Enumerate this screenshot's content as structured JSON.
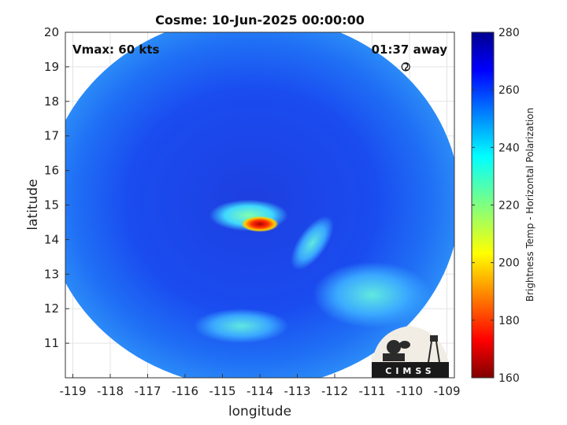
{
  "chart_data": {
    "type": "heatmap",
    "title": "Cosme: 10-Jun-2025 00:00:00",
    "xlabel": "longitude",
    "ylabel": "latitude",
    "xlim": [
      -119.2,
      -108.8
    ],
    "ylim": [
      10,
      20
    ],
    "xticks": [
      "-119",
      "-118",
      "-117",
      "-116",
      "-115",
      "-114",
      "-113",
      "-112",
      "-111",
      "-110",
      "-109"
    ],
    "yticks": [
      "11",
      "12",
      "13",
      "14",
      "15",
      "16",
      "17",
      "18",
      "19",
      "20"
    ],
    "xtick_values": [
      -119,
      -118,
      -117,
      -116,
      -115,
      -114,
      -113,
      -112,
      -111,
      -110,
      -109
    ],
    "ytick_values": [
      11,
      12,
      13,
      14,
      15,
      16,
      17,
      18,
      19,
      20
    ],
    "grid": true,
    "annotations": {
      "vmax": "Vmax: 60 kts",
      "time_away": "01:37 away"
    },
    "storm_center": {
      "lon": -110.1,
      "lat": 19.0
    },
    "colorbar": {
      "label": "Brightness Temp - Horizontal Polarization",
      "range": [
        160,
        280
      ],
      "ticks": [
        "160",
        "180",
        "200",
        "220",
        "240",
        "260",
        "280"
      ],
      "tick_values": [
        160,
        180,
        200,
        220,
        240,
        260,
        280
      ],
      "colormap": "jet"
    },
    "swath": {
      "center_lon": -114.2,
      "center_lat": 15.1,
      "radius_lon": 5.55,
      "radius_lat": 5.4,
      "background_tb": 268
    },
    "features": [
      {
        "name": "eyewall",
        "lon": -114.0,
        "lat": 14.45,
        "tb": 185
      },
      {
        "name": "inner-band",
        "lon": -114.3,
        "lat": 14.7,
        "tb": 225
      },
      {
        "name": "outer-rainband",
        "lon": -112.6,
        "lat": 13.9,
        "tb": 240
      },
      {
        "name": "southern-convection",
        "lon": -111.0,
        "lat": 12.4,
        "tb": 235
      },
      {
        "name": "southwest-convection",
        "lon": -114.5,
        "lat": 11.5,
        "tb": 238
      }
    ],
    "logo": {
      "text": "CIMSS"
    }
  }
}
